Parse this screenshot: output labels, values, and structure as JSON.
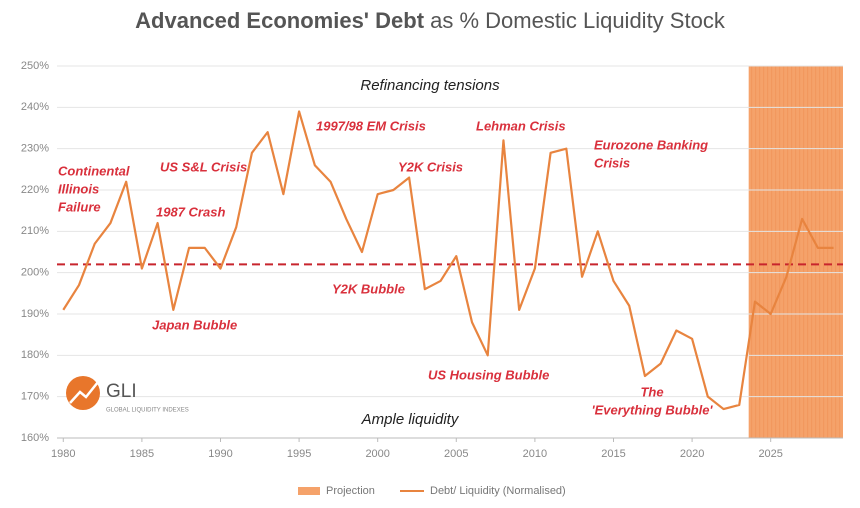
{
  "chart_data": {
    "type": "line",
    "title_bold": "Advanced Economies' Debt",
    "title_rest": " as % Domestic Liquidity Stock",
    "x": [
      1980,
      1981,
      1982,
      1983,
      1984,
      1985,
      1986,
      1987,
      1988,
      1989,
      1990,
      1991,
      1992,
      1993,
      1994,
      1995,
      1996,
      1997,
      1998,
      1999,
      2000,
      2001,
      2002,
      2003,
      2004,
      2005,
      2006,
      2007,
      2008,
      2009,
      2010,
      2011,
      2012,
      2013,
      2014,
      2015,
      2016,
      2017,
      2018,
      2019,
      2020,
      2021,
      2022,
      2023,
      2024,
      2025,
      2026,
      2027,
      2028,
      2029
    ],
    "series": [
      {
        "name": "Debt/ Liquidity (Normalised)",
        "color": "#e8843f",
        "values": [
          191,
          197,
          207,
          212,
          222,
          201,
          212,
          191,
          206,
          206,
          201,
          211,
          229,
          234,
          219,
          239,
          226,
          222,
          213,
          205,
          219,
          220,
          223,
          196,
          198,
          204,
          188,
          180,
          232,
          191,
          201,
          229,
          230,
          199,
          210,
          198,
          192,
          175,
          178,
          186,
          184,
          170,
          167,
          168,
          193,
          190,
          199,
          213,
          206,
          206
        ]
      }
    ],
    "reference_line": {
      "value": 202,
      "color": "#c8252d"
    },
    "projection": {
      "name": "Projection",
      "range": [
        2023.6,
        2029.6
      ],
      "color": "#f5a26a"
    },
    "xlim": [
      1979.6,
      2029.6
    ],
    "xticks": [
      1980,
      1985,
      1990,
      1995,
      2000,
      2005,
      2010,
      2015,
      2020,
      2025
    ],
    "ylim": [
      160,
      250
    ],
    "yticks": [
      {
        "value": 160,
        "label": "160%"
      },
      {
        "value": 170,
        "label": "170%"
      },
      {
        "value": 180,
        "label": "180%"
      },
      {
        "value": 190,
        "label": "190%"
      },
      {
        "value": 200,
        "label": "200%"
      },
      {
        "value": 210,
        "label": "210%"
      },
      {
        "value": 220,
        "label": "220%"
      },
      {
        "value": 230,
        "label": "230%"
      },
      {
        "value": 240,
        "label": "240%"
      },
      {
        "value": 250,
        "label": "250%"
      }
    ],
    "grid": true,
    "zone_labels": [
      "Refinancing tensions",
      "Ample liquidity"
    ],
    "annotations": [
      [
        "Continental",
        "Illinois",
        "Failure"
      ],
      [
        "US S&L Crisis"
      ],
      [
        "1987 Crash"
      ],
      [
        "Japan Bubble"
      ],
      [
        "1997/98 EM Crisis"
      ],
      [
        "Y2K Crisis"
      ],
      [
        "Y2K Bubble"
      ],
      [
        "Lehman Crisis"
      ],
      [
        "US Housing Bubble"
      ],
      [
        "Eurozone Banking",
        "Crisis"
      ],
      [
        "The",
        "'Everything Bubble'"
      ]
    ],
    "logo": {
      "name": "GLI",
      "subtitle": "GLOBAL LIQUIDITY INDEXES"
    }
  }
}
